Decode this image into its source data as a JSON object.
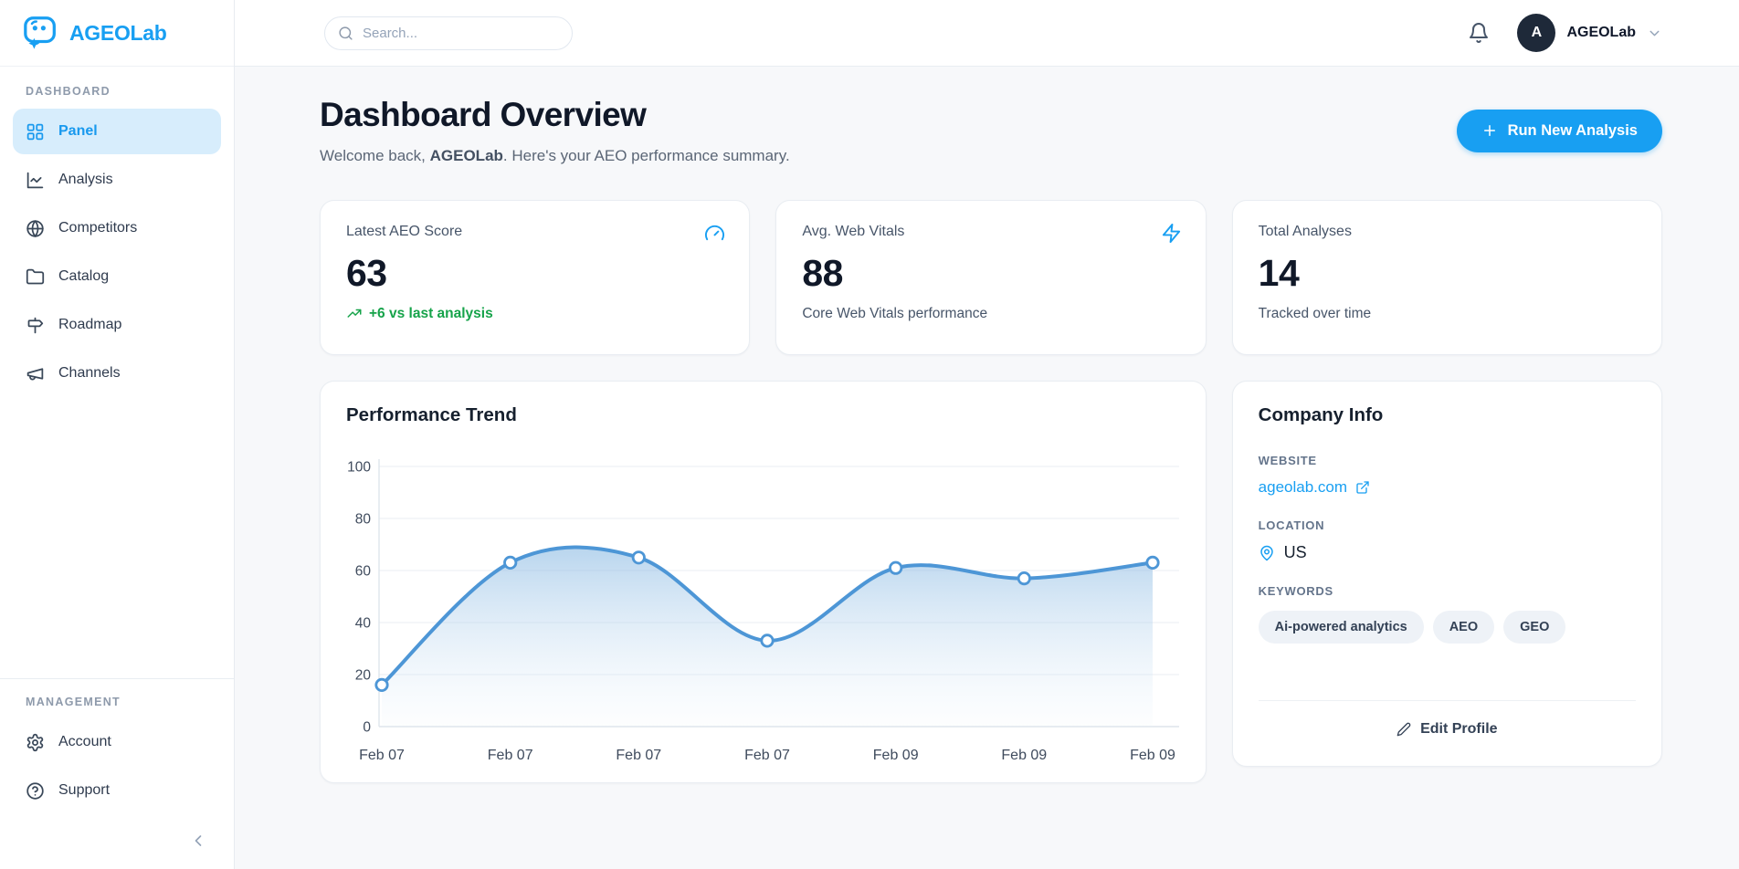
{
  "brand": {
    "name": "AGEOLab",
    "logo_icon": "chat-sparkle-logo-icon"
  },
  "header": {
    "search_placeholder": "Search...",
    "bell_icon": "bell-icon",
    "user": {
      "initial": "A",
      "name": "AGEOLab",
      "chevron_icon": "chevron-down-icon"
    }
  },
  "sidebar": {
    "sections": [
      {
        "label": "DASHBOARD",
        "items": [
          {
            "label": "Panel",
            "icon": "grid-icon",
            "active": true
          },
          {
            "label": "Analysis",
            "icon": "line-chart-icon",
            "active": false
          },
          {
            "label": "Competitors",
            "icon": "globe-icon",
            "active": false
          },
          {
            "label": "Catalog",
            "icon": "folder-icon",
            "active": false
          },
          {
            "label": "Roadmap",
            "icon": "signpost-icon",
            "active": false
          },
          {
            "label": "Channels",
            "icon": "megaphone-icon",
            "active": false
          }
        ]
      },
      {
        "label": "MANAGEMENT",
        "items": [
          {
            "label": "Account",
            "icon": "gear-icon",
            "active": false
          },
          {
            "label": "Support",
            "icon": "help-circle-icon",
            "active": false
          }
        ]
      }
    ],
    "collapse_icon": "chevron-left-icon"
  },
  "page": {
    "title": "Dashboard Overview",
    "welcome_prefix": "Welcome back, ",
    "welcome_name": "AGEOLab",
    "welcome_suffix": ". Here's your AEO performance summary.",
    "run_button": "Run New Analysis"
  },
  "stats": [
    {
      "label": "Latest AEO Score",
      "value": "63",
      "sub": "+6 vs last analysis",
      "sub_type": "positive",
      "sub_icon": "trending-up-icon",
      "icon": "gauge-icon"
    },
    {
      "label": "Avg. Web Vitals",
      "value": "88",
      "sub": "Core Web Vitals performance",
      "sub_type": "neutral",
      "icon": "bolt-icon"
    },
    {
      "label": "Total Analyses",
      "value": "14",
      "sub": "Tracked over time",
      "sub_type": "neutral",
      "icon": null
    }
  ],
  "chart_data": {
    "type": "area",
    "title": "Performance Trend",
    "x": [
      "Feb 07",
      "Feb 07",
      "Feb 07",
      "Feb 07",
      "Feb 09",
      "Feb 09",
      "Feb 09"
    ],
    "values": [
      16,
      63,
      65,
      33,
      61,
      57,
      63
    ],
    "ylim": [
      0,
      100
    ],
    "yticks": [
      0,
      20,
      40,
      60,
      80,
      100
    ],
    "grid": true,
    "legend": false,
    "line_color": "#4d96d6",
    "point_fill": "#ffffff",
    "area_fill_top": "#7fb3e0",
    "area_fill_bottom": "#eaf3fb"
  },
  "company": {
    "title": "Company Info",
    "website_label": "WEBSITE",
    "website": "ageolab.com",
    "website_icon": "external-link-icon",
    "location_label": "LOCATION",
    "location": "US",
    "location_icon": "map-pin-icon",
    "keywords_label": "KEYWORDS",
    "keywords": [
      "Ai-powered analytics",
      "AEO",
      "GEO"
    ],
    "edit_button": "Edit Profile",
    "edit_icon": "pencil-icon"
  },
  "colors": {
    "primary": "#189ff2",
    "primary_active_bg": "#d7edfc",
    "positive_green": "#16a34a",
    "chart_line": "#4d96d6",
    "avatar_bg": "#1e2939",
    "page_bg": "#f7f8fa"
  }
}
